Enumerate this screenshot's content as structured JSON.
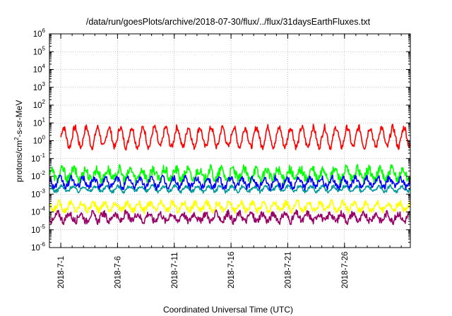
{
  "chart_data": {
    "type": "line",
    "title": "/data/run/goesPlots/archive/2018-07-30/flux/../flux/31daysEarthFluxes.txt",
    "xlabel": "Coordinated Universal Time (UTC)",
    "ylabel": {
      "pre": "protons/cm",
      "sup": "2",
      "post": "-s-sr-MeV"
    },
    "yscale": "log",
    "ylim": [
      -6,
      6
    ],
    "y_tick_base": "10",
    "y_tick_exponents": [
      "-6",
      "-5",
      "-4",
      "-3",
      "-2",
      "-1",
      "0",
      "1",
      "2",
      "3",
      "4",
      "5",
      "6"
    ],
    "xlim": [
      -1.0,
      30.8
    ],
    "x_ticks": [
      {
        "day": 0,
        "label": "2018-7-1"
      },
      {
        "day": 5,
        "label": "2018-7-6"
      },
      {
        "day": 10,
        "label": "2018-7-11"
      },
      {
        "day": 15,
        "label": "2018-7-16"
      },
      {
        "day": 20,
        "label": "2018-7-21"
      },
      {
        "day": 25,
        "label": "2018-7-26"
      }
    ],
    "x_minor_ticks_per_day": true,
    "grid": true,
    "series": [
      {
        "color": "#ff0000",
        "center": 0.2,
        "amp": 0.55,
        "noise": 0.18,
        "days_start": 0.0,
        "days_end": 30.8
      },
      {
        "color": "#00ff00",
        "center": -1.9,
        "amp": 0.3,
        "noise": 0.28,
        "days_start": -1.0,
        "days_end": 30.8
      },
      {
        "color": "#009999",
        "center": -2.7,
        "amp": 0.15,
        "noise": 0.1,
        "days_start": -1.0,
        "days_end": 30.8
      },
      {
        "color": "#0000ff",
        "center": -2.35,
        "amp": 0.25,
        "noise": 0.18,
        "days_start": -1.0,
        "days_end": 30.8
      },
      {
        "color": "#ffff00",
        "center": -3.7,
        "amp": 0.22,
        "noise": 0.18,
        "days_start": -1.0,
        "days_end": 30.8
      },
      {
        "color": "#990066",
        "center": -4.3,
        "amp": 0.22,
        "noise": 0.2,
        "days_start": -1.0,
        "days_end": 30.8
      }
    ]
  }
}
